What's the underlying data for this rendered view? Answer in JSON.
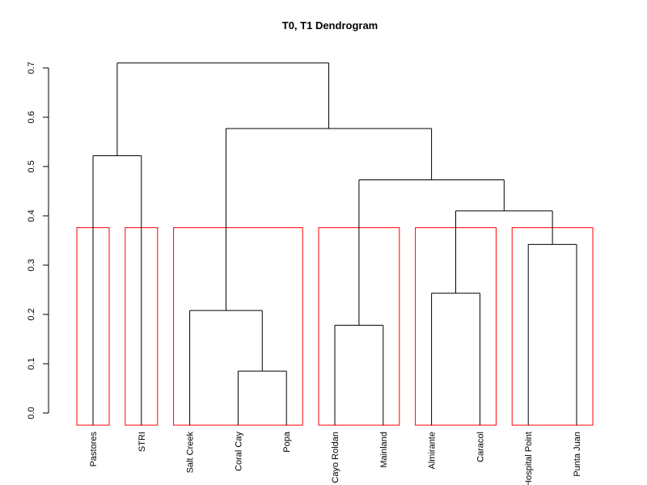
{
  "chart_data": {
    "type": "dendrogram",
    "title": "T0, T1 Dendrogram",
    "xlabel": "",
    "ylabel": "",
    "ylim": [
      0,
      0.7
    ],
    "yticks": [
      "0.0",
      "0.1",
      "0.2",
      "0.3",
      "0.4",
      "0.5",
      "0.6",
      "0.7"
    ],
    "leaves": [
      "Pastores",
      "STRI",
      "Salt Creek",
      "Coral Cay",
      "Popa",
      "Cayo Roldan",
      "Mainland",
      "Almirante",
      "Caracol",
      "Hospital Point",
      "Punta Juan"
    ],
    "merges": [
      {
        "left": "Coral Cay",
        "right": "Popa",
        "height": 0.085
      },
      {
        "left": "Cayo Roldan",
        "right": "Mainland",
        "height": 0.178
      },
      {
        "left": "Salt Creek",
        "right": "Coral Cay + Popa",
        "height": 0.208
      },
      {
        "left": "Almirante",
        "right": "Caracol",
        "height": 0.243
      },
      {
        "left": "Hospital Point",
        "right": "Punta Juan",
        "height": 0.342
      },
      {
        "left": "Almirante + Caracol",
        "right": "Hospital Point + Punta Juan",
        "height": 0.41
      },
      {
        "left": "Cayo Roldan + Mainland",
        "right": "Almirante + Caracol + Hospital Point + Punta Juan",
        "height": 0.473
      },
      {
        "left": "Pastores",
        "right": "STRI",
        "height": 0.522
      },
      {
        "left": "Salt Creek + Coral Cay + Popa",
        "right": "Cayo Roldan + Mainland + Almirante + Caracol + Hospital Point + Punta Juan",
        "height": 0.577
      },
      {
        "left": "Pastores + STRI",
        "right": "Salt Creek + Coral Cay + Popa + Cayo Roldan + Mainland + Almirante + Caracol + Hospital Point + Punta Juan",
        "height": 0.71
      }
    ],
    "cluster_boxes": [
      {
        "leaves": [
          "Pastores"
        ],
        "top": 0.376
      },
      {
        "leaves": [
          "STRI"
        ],
        "top": 0.376
      },
      {
        "leaves": [
          "Salt Creek",
          "Coral Cay",
          "Popa"
        ],
        "top": 0.376
      },
      {
        "leaves": [
          "Cayo Roldan",
          "Mainland"
        ],
        "top": 0.376
      },
      {
        "leaves": [
          "Almirante",
          "Caracol"
        ],
        "top": 0.376
      },
      {
        "leaves": [
          "Hospital Point",
          "Punta Juan"
        ],
        "top": 0.376
      }
    ],
    "colors": {
      "tree": "#000000",
      "boxes": "#ff0000"
    },
    "grid": false,
    "legend": "none"
  }
}
